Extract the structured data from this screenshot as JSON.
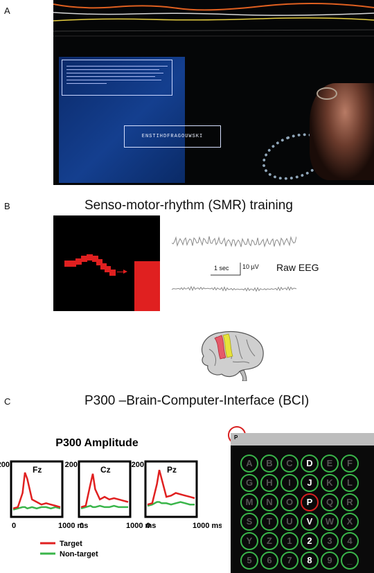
{
  "panels": {
    "a": {
      "letter": "A",
      "speller_text": "ENSTIHDFRAGOUWSKI"
    },
    "b": {
      "letter": "B",
      "title": "Senso-motor-rhythm (SMR) training",
      "scale_time": "1 sec",
      "scale_amp": "10 µV",
      "raw_label": "Raw EEG"
    },
    "c": {
      "letter": "C",
      "title": "P300 –Brain-Computer-Interface (BCI)",
      "amplitude_title": "P300 Amplitude",
      "legend_target": "Target",
      "legend_nontarget": "Non-target",
      "speller_prompt": "P"
    }
  },
  "colors": {
    "target": "#e02020",
    "non_target": "#3ab54a",
    "panel_black": "#000000",
    "cue_red": "#e02020"
  },
  "speller_grid": [
    [
      "A",
      "B",
      "C",
      "D",
      "E",
      "F"
    ],
    [
      "G",
      "H",
      "I",
      "J",
      "K",
      "L"
    ],
    [
      "M",
      "N",
      "O",
      "P",
      "Q",
      "R"
    ],
    [
      "S",
      "T",
      "U",
      "V",
      "W",
      "X"
    ],
    [
      "Y",
      "Z",
      "1",
      "2",
      "3",
      "4"
    ],
    [
      "5",
      "6",
      "7",
      "8",
      "9",
      "_"
    ]
  ],
  "speller_highlight_column": 3,
  "speller_target": "P",
  "chart_data": {
    "type": "line",
    "title": "P300 Amplitude",
    "panels": [
      {
        "label": "Fz",
        "x": [
          0,
          100,
          200,
          250,
          300,
          400,
          500,
          600,
          700,
          800,
          900,
          1000
        ],
        "series": [
          {
            "name": "Target",
            "values": [
              25,
              30,
              85,
              165,
              140,
              60,
              50,
              40,
              45,
              40,
              35,
              30
            ]
          },
          {
            "name": "Non-target",
            "values": [
              20,
              25,
              30,
              30,
              25,
              30,
              25,
              30,
              30,
              25,
              30,
              25
            ]
          }
        ]
      },
      {
        "label": "Cz",
        "x": [
          0,
          100,
          200,
          250,
          300,
          400,
          500,
          600,
          700,
          800,
          900,
          1000
        ],
        "series": [
          {
            "name": "Target",
            "values": [
              30,
              35,
              120,
              160,
              100,
              60,
              70,
              60,
              65,
              60,
              55,
              50
            ]
          },
          {
            "name": "Non-target",
            "values": [
              25,
              30,
              35,
              30,
              30,
              35,
              30,
              30,
              35,
              30,
              30,
              30
            ]
          }
        ]
      },
      {
        "label": "Pz",
        "x": [
          0,
          100,
          200,
          250,
          300,
          400,
          500,
          600,
          700,
          800,
          900,
          1000
        ],
        "series": [
          {
            "name": "Target",
            "values": [
              40,
              45,
              120,
              175,
              140,
              70,
              75,
              85,
              80,
              75,
              70,
              65
            ]
          },
          {
            "name": "Non-target",
            "values": [
              35,
              40,
              50,
              50,
              45,
              45,
              40,
              45,
              50,
              45,
              40,
              40
            ]
          }
        ]
      }
    ],
    "y_tick_top": "200",
    "x_tick_start": "0",
    "x_tick_end": "1000 ms",
    "ylim": [
      0,
      200
    ],
    "xlim": [
      0,
      1000
    ],
    "legend": [
      "Target",
      "Non-target"
    ],
    "legend_placement": "bottom-left"
  }
}
